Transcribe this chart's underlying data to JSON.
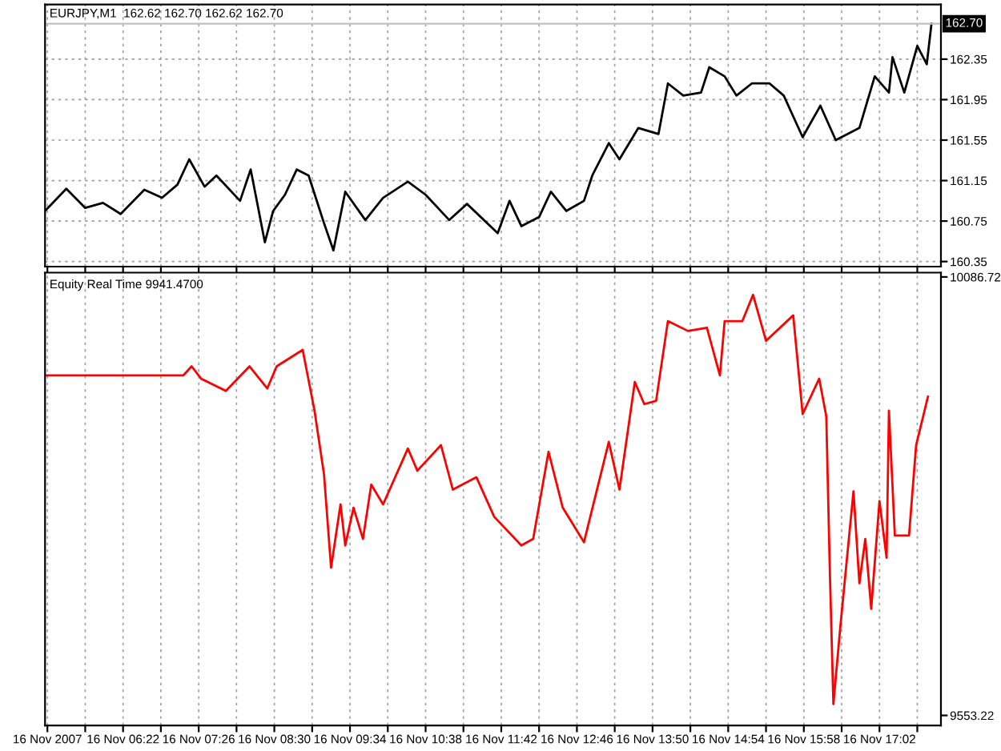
{
  "chart_data": [
    {
      "type": "line",
      "title": "EURJPY,M1  162.62 162.70 162.62 162.70",
      "tick_labels": "y",
      "grid": true,
      "line_style": "solid",
      "x": [
        "2007-11-16T05:16",
        "2007-11-16T05:34",
        "2007-11-16T05:50",
        "2007-11-16T06:05",
        "2007-11-16T06:20",
        "2007-11-16T06:40",
        "2007-11-16T06:55",
        "2007-11-16T07:08",
        "2007-11-16T07:18",
        "2007-11-16T07:31",
        "2007-11-16T07:41",
        "2007-11-16T08:01",
        "2007-11-16T08:10",
        "2007-11-16T08:22",
        "2007-11-16T08:29",
        "2007-11-16T08:39",
        "2007-11-16T08:49",
        "2007-11-16T08:59",
        "2007-11-16T09:12",
        "2007-11-16T09:20",
        "2007-11-16T09:30",
        "2007-11-16T09:47",
        "2007-11-16T10:02",
        "2007-11-16T10:23",
        "2007-11-16T10:38",
        "2007-11-16T10:58",
        "2007-11-16T11:13",
        "2007-11-16T11:39",
        "2007-11-16T11:49",
        "2007-11-16T11:59",
        "2007-11-16T12:14",
        "2007-11-16T12:24",
        "2007-11-16T12:37",
        "2007-11-16T12:52",
        "2007-11-16T12:59",
        "2007-11-16T13:13",
        "2007-11-16T13:22",
        "2007-11-16T13:38",
        "2007-11-16T13:55",
        "2007-11-16T14:03",
        "2007-11-16T14:16",
        "2007-11-16T14:31",
        "2007-11-16T14:38",
        "2007-11-16T14:51",
        "2007-11-16T15:01",
        "2007-11-16T15:14",
        "2007-11-16T15:29",
        "2007-11-16T15:41",
        "2007-11-16T15:57",
        "2007-11-16T16:12",
        "2007-11-16T16:25",
        "2007-11-16T16:45",
        "2007-11-16T16:58",
        "2007-11-16T17:10",
        "2007-11-16T17:13",
        "2007-11-16T17:23",
        "2007-11-16T17:34",
        "2007-11-16T17:42",
        "2007-11-16T17:46"
      ],
      "series": [
        {
          "color": "#000000",
          "values": [
            160.85,
            161.07,
            160.88,
            160.93,
            160.82,
            161.06,
            160.98,
            161.11,
            161.36,
            161.09,
            161.2,
            160.95,
            161.26,
            160.54,
            160.85,
            161.01,
            161.26,
            161.2,
            160.73,
            160.46,
            161.04,
            160.76,
            160.98,
            161.14,
            161.01,
            160.76,
            160.92,
            160.63,
            160.95,
            160.7,
            160.79,
            161.04,
            160.85,
            160.95,
            161.2,
            161.52,
            161.36,
            161.67,
            161.61,
            162.11,
            161.99,
            162.02,
            162.27,
            162.18,
            161.99,
            162.11,
            162.11,
            161.99,
            161.58,
            161.89,
            161.55,
            161.67,
            162.18,
            162.02,
            162.37,
            162.02,
            162.48,
            162.3,
            162.7
          ]
        }
      ],
      "xlim": [
        "2007-11-16T05:16",
        "2007-11-16T17:54"
      ],
      "xticks": [
        {
          "value": "2007-11-16T05:18",
          "label": null
        },
        {
          "value": "2007-11-16T05:50",
          "label": null
        },
        {
          "value": "2007-11-16T06:22",
          "label": null
        },
        {
          "value": "2007-11-16T06:54",
          "label": null
        },
        {
          "value": "2007-11-16T07:26",
          "label": null
        },
        {
          "value": "2007-11-16T07:58",
          "label": null
        },
        {
          "value": "2007-11-16T08:30",
          "label": null
        },
        {
          "value": "2007-11-16T09:02",
          "label": null
        },
        {
          "value": "2007-11-16T09:34",
          "label": null
        },
        {
          "value": "2007-11-16T10:06",
          "label": null
        },
        {
          "value": "2007-11-16T10:38",
          "label": null
        },
        {
          "value": "2007-11-16T11:10",
          "label": null
        },
        {
          "value": "2007-11-16T11:42",
          "label": null
        },
        {
          "value": "2007-11-16T12:14",
          "label": null
        },
        {
          "value": "2007-11-16T12:46",
          "label": null
        },
        {
          "value": "2007-11-16T13:18",
          "label": null
        },
        {
          "value": "2007-11-16T13:50",
          "label": null
        },
        {
          "value": "2007-11-16T14:22",
          "label": null
        },
        {
          "value": "2007-11-16T14:54",
          "label": null
        },
        {
          "value": "2007-11-16T15:26",
          "label": null
        },
        {
          "value": "2007-11-16T15:58",
          "label": null
        },
        {
          "value": "2007-11-16T16:30",
          "label": null
        },
        {
          "value": "2007-11-16T17:02",
          "label": null
        },
        {
          "value": "2007-11-16T17:34",
          "label": null
        }
      ],
      "ylim": [
        160.3,
        162.89
      ],
      "yticks": [
        160.35,
        160.75,
        161.15,
        161.55,
        161.95,
        162.35
      ],
      "ref_lines": [
        {
          "axis": "y",
          "value": 162.7,
          "label": "162.70",
          "color": "#c0c0c0"
        }
      ]
    },
    {
      "type": "line",
      "title": "Equity Real Time 9941.4700",
      "grid": "x",
      "line_style": "solid",
      "x": [
        "2007-11-16T05:16",
        "2007-11-16T07:13",
        "2007-11-16T07:20",
        "2007-11-16T07:28",
        "2007-11-16T07:49",
        "2007-11-16T08:09",
        "2007-11-16T08:24",
        "2007-11-16T08:32",
        "2007-11-16T08:54",
        "2007-11-16T09:04",
        "2007-11-16T09:12",
        "2007-11-16T09:18",
        "2007-11-16T09:26",
        "2007-11-16T09:30",
        "2007-11-16T09:37",
        "2007-11-16T09:45",
        "2007-11-16T09:52",
        "2007-11-16T10:02",
        "2007-11-16T10:23",
        "2007-11-16T10:31",
        "2007-11-16T10:51",
        "2007-11-16T11:01",
        "2007-11-16T11:21",
        "2007-11-16T11:36",
        "2007-11-16T11:59",
        "2007-11-16T12:09",
        "2007-11-16T12:22",
        "2007-11-16T12:34",
        "2007-11-16T12:52",
        "2007-11-16T13:13",
        "2007-11-16T13:22",
        "2007-11-16T13:35",
        "2007-11-16T13:43",
        "2007-11-16T13:53",
        "2007-11-16T14:03",
        "2007-11-16T14:20",
        "2007-11-16T14:36",
        "2007-11-16T14:47",
        "2007-11-16T14:51",
        "2007-11-16T15:06",
        "2007-11-16T15:15",
        "2007-11-16T15:26",
        "2007-11-16T15:49",
        "2007-11-16T15:57",
        "2007-11-16T16:11",
        "2007-11-16T16:17",
        "2007-11-16T16:20",
        "2007-11-16T16:23",
        "2007-11-16T16:29",
        "2007-11-16T16:40",
        "2007-11-16T16:45",
        "2007-11-16T16:50",
        "2007-11-16T16:55",
        "2007-11-16T17:02",
        "2007-11-16T17:08",
        "2007-11-16T17:10",
        "2007-11-16T17:15",
        "2007-11-16T17:27",
        "2007-11-16T17:33",
        "2007-11-16T17:43"
      ],
      "series": [
        {
          "color": "#ff0000",
          "values": [
            9967,
            9967,
            9978,
            9963,
            9948,
            9978,
            9951,
            9978,
            9998,
            9924,
            9847,
            9733,
            9810,
            9760,
            9806,
            9768,
            9834,
            9810,
            9878,
            9851,
            9882,
            9828,
            9843,
            9795,
            9760,
            9768,
            9874,
            9806,
            9764,
            9886,
            9828,
            9959,
            9932,
            9936,
            10033,
            10021,
            10025,
            9967,
            10033,
            10033,
            10065,
            10009,
            10040,
            9920,
            9963,
            9917,
            9729,
            9567,
            9663,
            9826,
            9714,
            9768,
            9683,
            9814,
            9745,
            9924,
            9772,
            9772,
            9882,
            9941
          ]
        }
      ],
      "xlim": [
        "2007-11-16T05:16",
        "2007-11-16T17:54"
      ],
      "xticks": [
        {
          "value": "2007-11-16T05:18",
          "label": "16 Nov 2007"
        },
        {
          "value": "2007-11-16T05:50",
          "label": null
        },
        {
          "value": "2007-11-16T06:22",
          "label": "16 Nov 06:22"
        },
        {
          "value": "2007-11-16T06:54",
          "label": null
        },
        {
          "value": "2007-11-16T07:26",
          "label": "16 Nov 07:26"
        },
        {
          "value": "2007-11-16T07:58",
          "label": null
        },
        {
          "value": "2007-11-16T08:30",
          "label": "16 Nov 08:30"
        },
        {
          "value": "2007-11-16T09:02",
          "label": null
        },
        {
          "value": "2007-11-16T09:34",
          "label": "16 Nov 09:34"
        },
        {
          "value": "2007-11-16T10:06",
          "label": null
        },
        {
          "value": "2007-11-16T10:38",
          "label": "16 Nov 10:38"
        },
        {
          "value": "2007-11-16T11:10",
          "label": null
        },
        {
          "value": "2007-11-16T11:42",
          "label": "16 Nov 11:42"
        },
        {
          "value": "2007-11-16T12:14",
          "label": null
        },
        {
          "value": "2007-11-16T12:46",
          "label": "16 Nov 12:46"
        },
        {
          "value": "2007-11-16T13:18",
          "label": null
        },
        {
          "value": "2007-11-16T13:50",
          "label": "16 Nov 13:50"
        },
        {
          "value": "2007-11-16T14:22",
          "label": null
        },
        {
          "value": "2007-11-16T14:54",
          "label": "16 Nov 14:54"
        },
        {
          "value": "2007-11-16T15:26",
          "label": null
        },
        {
          "value": "2007-11-16T15:58",
          "label": "16 Nov 15:58"
        },
        {
          "value": "2007-11-16T16:30",
          "label": null
        },
        {
          "value": "2007-11-16T17:02",
          "label": "16 Nov 17:02"
        },
        {
          "value": "2007-11-16T17:34",
          "label": null
        }
      ],
      "ylim": [
        9541,
        10092
      ],
      "yticks": [
        9553.22,
        10086.72
      ]
    }
  ]
}
